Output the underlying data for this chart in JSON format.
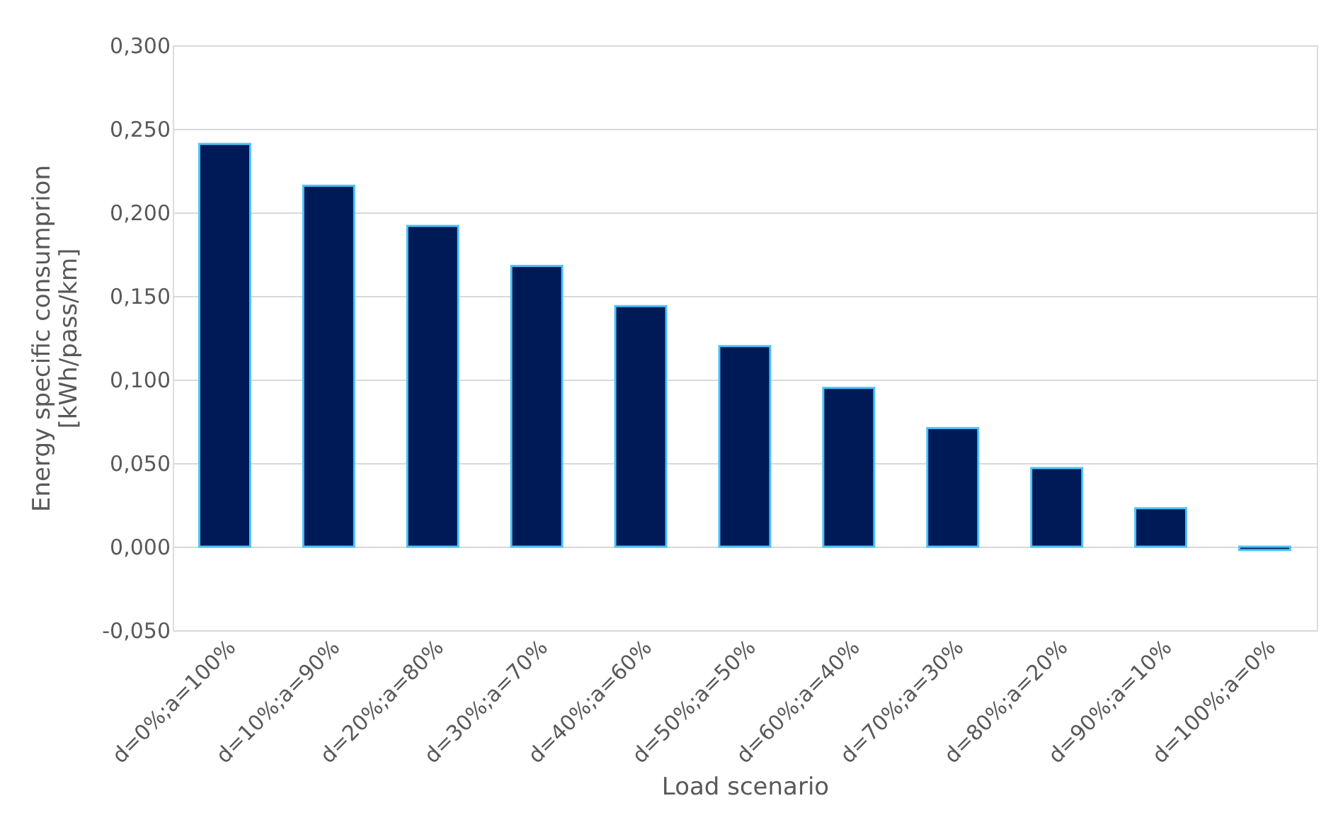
{
  "chart_data": {
    "type": "bar",
    "xlabel": "Load scenario",
    "ylabel": "Energy specific consumprion\n[kWh/pass/km]",
    "categories": [
      "d=0%;a=100%",
      "d=10%;a=90%",
      "d=20%;a=80%",
      "d=30%;a=70%",
      "d=40%;a=60%",
      "d=50%;a=50%",
      "d=60%;a=40%",
      "d=70%;a=30%",
      "d=80%;a=20%",
      "d=90%;a=10%",
      "d=100%;a=0%"
    ],
    "values": [
      0.241,
      0.216,
      0.192,
      0.168,
      0.144,
      0.12,
      0.095,
      0.071,
      0.047,
      0.023,
      -0.002
    ],
    "color": "#001a57",
    "ylim": [
      -0.05,
      0.3
    ],
    "yticks": [
      {
        "value": -0.05,
        "label": "-0,050"
      },
      {
        "value": 0,
        "label": "0,000"
      },
      {
        "value": 0.05,
        "label": "0,050"
      },
      {
        "value": 0.1,
        "label": "0,100"
      },
      {
        "value": 0.15,
        "label": "0,150"
      },
      {
        "value": 0.2,
        "label": "0,200"
      },
      {
        "value": 0.25,
        "label": "0,250"
      },
      {
        "value": 0.3,
        "label": "0,300"
      }
    ],
    "grid": "y"
  }
}
